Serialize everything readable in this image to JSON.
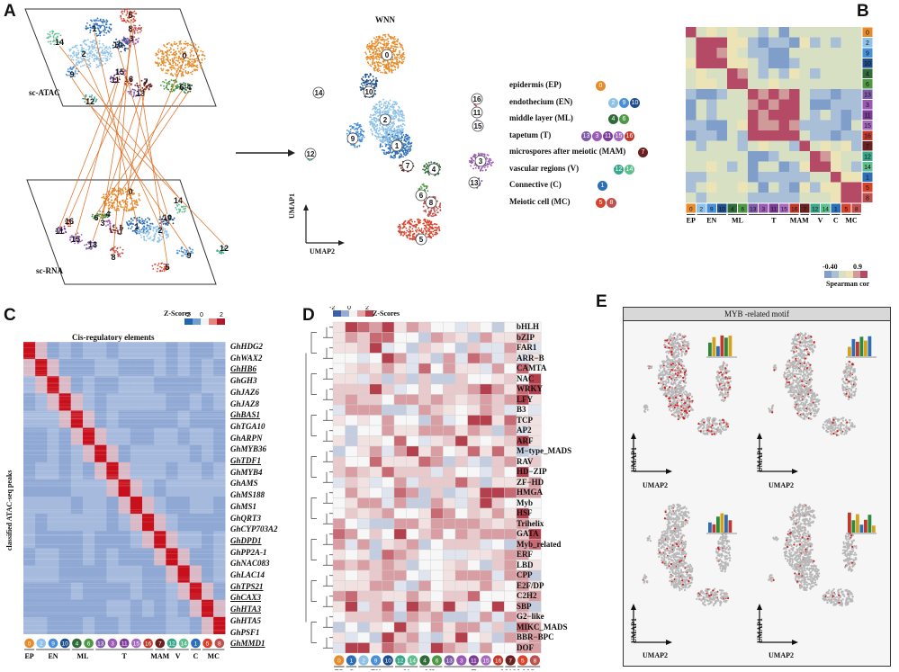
{
  "panels": {
    "A": "A",
    "B": "B",
    "C": "C",
    "D": "D",
    "E": "E"
  },
  "panel_a": {
    "atac_label": "sc-ATAC",
    "rna_label": "sc-RNA",
    "wnn_title": "WNN",
    "umap1": "UMAP1",
    "umap2": "UMAP2",
    "atac_clusters": [
      "14",
      "1",
      "5",
      "8",
      "2",
      "10",
      "3",
      "0",
      "9",
      "15",
      "11",
      "16",
      "7",
      "6",
      "4",
      "12",
      "13"
    ],
    "rna_clusters": [
      "16",
      "0",
      "14",
      "11",
      "15",
      "1",
      "10",
      "13",
      "7",
      "2",
      "12",
      "8",
      "3",
      "6",
      "4",
      "5",
      "9"
    ],
    "wnn_clusters": [
      "0",
      "14",
      "10",
      "2",
      "9",
      "1",
      "7",
      "3",
      "4",
      "6",
      "12",
      "16",
      "11",
      "15",
      "13",
      "5",
      "8"
    ],
    "legend": [
      {
        "label": "epidermis (EP)",
        "clusters": [
          "0"
        ]
      },
      {
        "label": "endothecium (EN)",
        "clusters": [
          "2",
          "9",
          "10"
        ]
      },
      {
        "label": "middle layer (ML)",
        "clusters": [
          "4",
          "6"
        ]
      },
      {
        "label": "tapetum (T)",
        "clusters": [
          "13",
          "3",
          "11",
          "15",
          "16"
        ]
      },
      {
        "label": "microspores after meiotic (MAM)",
        "clusters": [
          "7"
        ]
      },
      {
        "label": "vascular regions (V)",
        "clusters": [
          "12",
          "14"
        ]
      },
      {
        "label": "Connective (C)",
        "clusters": [
          "1"
        ]
      },
      {
        "label": "Meiotic cell (MC)",
        "clusters": [
          "5",
          "8"
        ]
      }
    ]
  },
  "colors": {
    "0": "#e88b2a",
    "1": "#2c6fb7",
    "2": "#8ec2e8",
    "3": "#9b59b6",
    "4": "#2e6b38",
    "5": "#d9432c",
    "6": "#4e9a44",
    "7": "#6b1f1f",
    "8": "#c0504d",
    "9": "#4a90d9",
    "10": "#1f4e8c",
    "11": "#7d3c98",
    "12": "#3aa789",
    "13": "#7d5ba6",
    "14": "#5fbf8f",
    "15": "#a569bd",
    "16": "#c0392b",
    "accent": "#e06a1b",
    "heat_high": "#b2182b",
    "heat_low": "#2166ac"
  },
  "panel_b": {
    "row_labels": [
      "0",
      "2",
      "9",
      "10",
      "4",
      "6",
      "13",
      "3",
      "11",
      "15",
      "16",
      "7",
      "12",
      "14",
      "1",
      "5",
      "8"
    ],
    "col_labels": [
      "0",
      "2",
      "9",
      "10",
      "4",
      "6",
      "13",
      "3",
      "11",
      "15",
      "16",
      "7",
      "12",
      "14",
      "1",
      "5",
      "8"
    ],
    "groups": [
      "EP",
      "EN",
      "ML",
      "T",
      "MAM",
      "V",
      "C",
      "MC"
    ],
    "scale_min": "-0.40",
    "scale_max": "0.9",
    "scale_label": "Spearman cor"
  },
  "panel_c": {
    "title": "Cis-regulatory elements",
    "ylabel": "classified ATAC-seq peaks",
    "zscore": "Z-Scores",
    "z_min": "-2",
    "z_mid": "0",
    "z_max": "2",
    "clusters": [
      "0",
      "2",
      "9",
      "10",
      "4",
      "6",
      "13",
      "3",
      "11",
      "15",
      "16",
      "7",
      "12",
      "14",
      "1",
      "5",
      "8"
    ],
    "groups": [
      "EP",
      "EN",
      "ML",
      "T",
      "MAM",
      "V",
      "C",
      "MC"
    ],
    "genes": [
      {
        "name": "GhHDG2",
        "u": false
      },
      {
        "name": "GhWAX2",
        "u": false
      },
      {
        "name": "GhHB6",
        "u": true
      },
      {
        "name": "GhGH3",
        "u": false
      },
      {
        "name": "GhJAZ6",
        "u": false
      },
      {
        "name": "GhJAZ8",
        "u": false
      },
      {
        "name": "GhBAS1",
        "u": true
      },
      {
        "name": "GhTGA10",
        "u": false
      },
      {
        "name": "GhARPN",
        "u": false
      },
      {
        "name": "GhMYB36",
        "u": false
      },
      {
        "name": "GhTDF1",
        "u": true
      },
      {
        "name": "GhMYB4",
        "u": false
      },
      {
        "name": "GhAMS",
        "u": false
      },
      {
        "name": "GhMS188",
        "u": false
      },
      {
        "name": "GhMS1",
        "u": false
      },
      {
        "name": "GhQRT3",
        "u": false
      },
      {
        "name": "GhCYP703A2",
        "u": false
      },
      {
        "name": "GhDPD1",
        "u": true
      },
      {
        "name": "GhPP2A-1",
        "u": false
      },
      {
        "name": "GhNAC083",
        "u": false
      },
      {
        "name": "GhLAC14",
        "u": false
      },
      {
        "name": "GhTPS21",
        "u": true
      },
      {
        "name": "GhCAX3",
        "u": true
      },
      {
        "name": "GhHTA3",
        "u": true
      },
      {
        "name": "GhHTA5",
        "u": false
      },
      {
        "name": "GhPSF1",
        "u": false
      },
      {
        "name": "GhMMD1",
        "u": true
      }
    ]
  },
  "panel_d": {
    "zscore": "Z-Scores",
    "z_min": "-2",
    "z_mid": "0",
    "z_max": "2",
    "clusters": [
      "0",
      "1",
      "2",
      "9",
      "10",
      "12",
      "14",
      "4",
      "6",
      "13",
      "3",
      "11",
      "15",
      "16",
      "7",
      "5",
      "8"
    ],
    "groups": [
      "EP",
      "C",
      "EN",
      "V",
      "ML",
      "T",
      "MAM",
      "MC"
    ],
    "tfs": [
      "bHLH",
      "bZIP",
      "FAR1",
      "ARR−B",
      "CAMTA",
      "NAC",
      "WRKY",
      "LFY",
      "B3",
      "TCP",
      "AP2",
      "ARF",
      "M−type_MADS",
      "RAV",
      "HD−ZIP",
      "ZF−HD",
      "HMGA",
      "Myb",
      "HSF",
      "Trihelix",
      "GATA",
      "Myb_related",
      "ERF",
      "LBD",
      "CPP",
      "E2F/DP",
      "C2H2",
      "SBP",
      "G2−like",
      "MIKC_MADS",
      "BBR−BPC",
      "DOF"
    ]
  },
  "panel_e": {
    "title": "MYB -related motif",
    "umap1": "UMAP1",
    "umap2": "UMAP2"
  }
}
